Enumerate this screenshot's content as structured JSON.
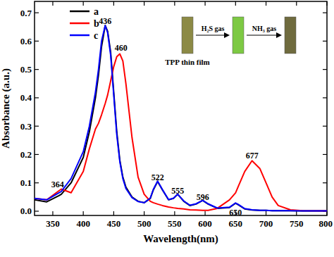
{
  "chart_data": {
    "type": "line",
    "x_label": "Wavelength(nm)",
    "y_label": "Absorbance (a.u.)",
    "x": [
      320,
      340,
      360,
      364,
      380,
      400,
      410,
      420,
      425,
      430,
      436,
      440,
      445,
      450,
      455,
      460,
      465,
      470,
      480,
      490,
      500,
      510,
      515,
      522,
      530,
      540,
      548,
      555,
      565,
      575,
      585,
      596,
      605,
      620,
      640,
      650,
      655,
      665,
      677,
      690,
      700,
      710,
      720,
      740,
      760,
      800
    ],
    "series": [
      {
        "name": "a",
        "color": "#000000",
        "values": [
          0.04,
          0.033,
          0.055,
          0.06,
          0.1,
          0.19,
          0.28,
          0.4,
          0.48,
          0.58,
          0.655,
          0.635,
          0.56,
          0.42,
          0.28,
          0.18,
          0.12,
          0.085,
          0.05,
          0.035,
          0.03,
          0.045,
          0.075,
          0.105,
          0.075,
          0.04,
          0.045,
          0.06,
          0.035,
          0.02,
          0.025,
          0.038,
          0.025,
          0.01,
          0.013,
          0.028,
          0.022,
          0.008,
          0.004,
          0.003,
          0.003,
          0.002,
          0.002,
          0.002,
          0.001,
          0.001
        ]
      },
      {
        "name": "b",
        "color": "#ff0000",
        "values": [
          0.045,
          0.04,
          0.072,
          0.078,
          0.065,
          0.14,
          0.22,
          0.29,
          0.31,
          0.34,
          0.38,
          0.41,
          0.46,
          0.51,
          0.545,
          0.555,
          0.53,
          0.45,
          0.26,
          0.12,
          0.06,
          0.035,
          0.03,
          0.025,
          0.02,
          0.015,
          0.012,
          0.01,
          0.008,
          0.005,
          0.004,
          0.003,
          0.003,
          0.01,
          0.04,
          0.065,
          0.09,
          0.14,
          0.178,
          0.15,
          0.1,
          0.05,
          0.02,
          0.005,
          0.002,
          0.001
        ]
      },
      {
        "name": "c",
        "color": "#0000ff",
        "values": [
          0.045,
          0.04,
          0.065,
          0.07,
          0.115,
          0.21,
          0.3,
          0.42,
          0.5,
          0.6,
          0.655,
          0.63,
          0.55,
          0.41,
          0.27,
          0.175,
          0.115,
          0.08,
          0.048,
          0.034,
          0.03,
          0.046,
          0.077,
          0.106,
          0.076,
          0.041,
          0.046,
          0.06,
          0.036,
          0.021,
          0.026,
          0.038,
          0.026,
          0.011,
          0.014,
          0.029,
          0.023,
          0.009,
          0.005,
          0.003,
          0.003,
          0.002,
          0.002,
          0.002,
          0.001,
          0.001
        ]
      }
    ],
    "xlim": [
      320,
      800
    ],
    "ylim": [
      -0.015,
      0.74
    ],
    "xticks": [
      350,
      400,
      450,
      500,
      550,
      600,
      650,
      700,
      750,
      800
    ],
    "yticks": [
      {
        "value": 0,
        "label": "0.0"
      },
      0.1,
      0.2,
      0.3,
      0.4,
      0.5,
      0.6,
      0.7
    ],
    "legend": "upper-left",
    "annotations": [
      {
        "text": "436",
        "x": 436,
        "y": 0.67
      },
      {
        "text": "460",
        "x": 462,
        "y": 0.575
      },
      {
        "text": "364",
        "x": 358,
        "y": 0.095
      },
      {
        "text": "522",
        "x": 522,
        "y": 0.12
      },
      {
        "text": "555",
        "x": 555,
        "y": 0.073
      },
      {
        "text": "596",
        "x": 596,
        "y": 0.05
      },
      {
        "text": "650",
        "x": 650,
        "y": -0.005
      },
      {
        "text": "677",
        "x": 677,
        "y": 0.195
      }
    ],
    "inset": {
      "labels": [
        "TPP thin film",
        "H₂S gas",
        "NH₃ gas"
      ]
    }
  }
}
